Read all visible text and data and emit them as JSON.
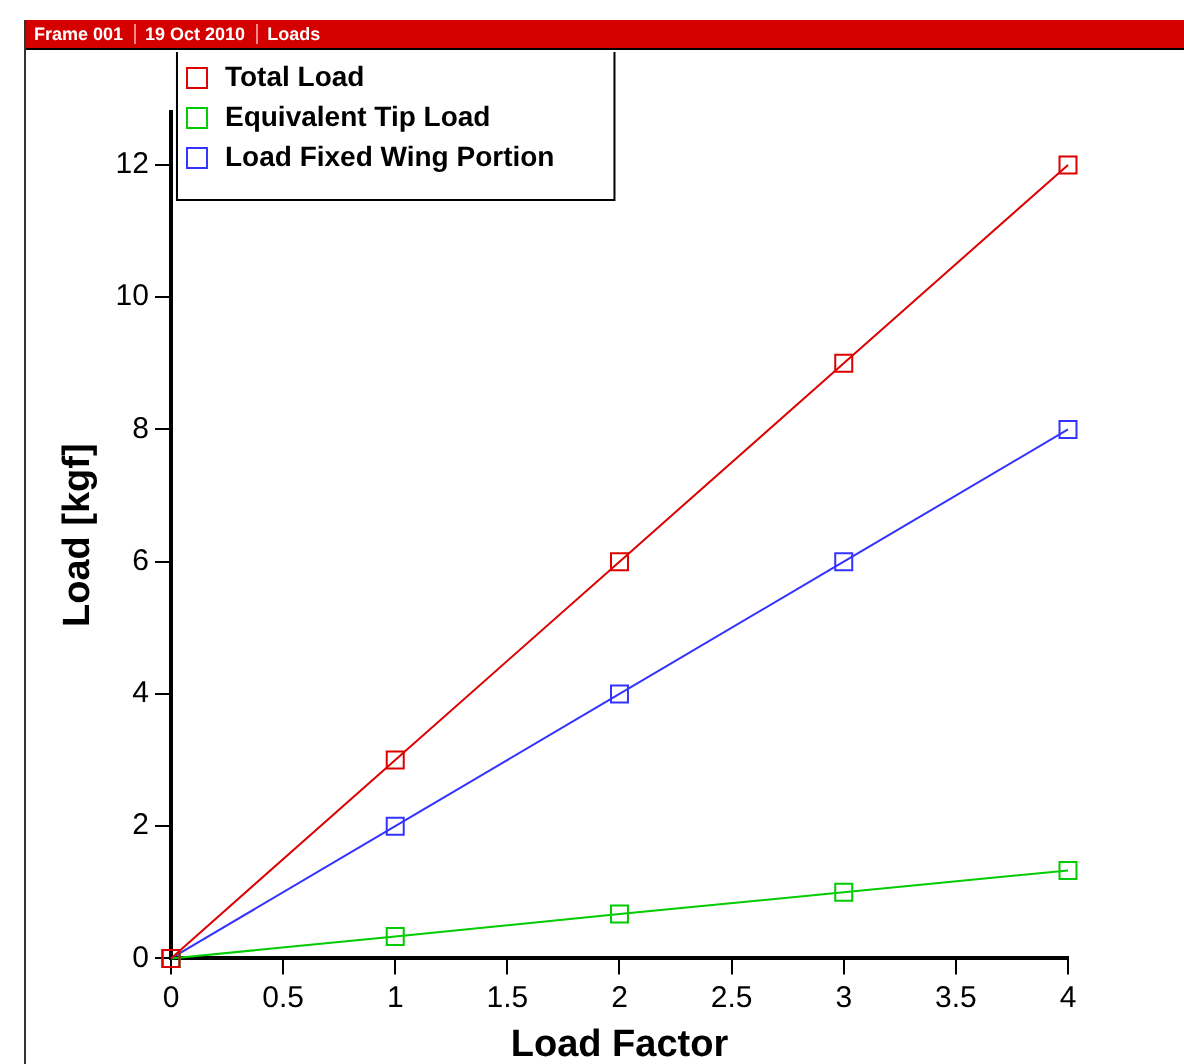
{
  "chart_data": {
    "type": "line",
    "annotations": [
      "Frame 001",
      "19 Oct 2010",
      "Loads"
    ],
    "xlabel": "Load Factor",
    "ylabel": "Load [kgf]",
    "x": [
      0,
      1,
      2,
      3,
      4
    ],
    "series": [
      {
        "name": "Total Load",
        "color": "#dd0000",
        "values": [
          0,
          3,
          6,
          9,
          12
        ]
      },
      {
        "name": "Equivalent Tip Load",
        "color": "#00cc00",
        "values": [
          0,
          0.33,
          0.67,
          1,
          1.33
        ]
      },
      {
        "name": "Load Fixed Wing Portion",
        "color": "#3333ff",
        "values": [
          0,
          2,
          4,
          6,
          8
        ]
      }
    ],
    "xlim": [
      0,
      4
    ],
    "xticks": [
      0,
      0.5,
      1,
      1.5,
      2,
      2.5,
      3,
      3.5,
      4
    ],
    "ylim": [
      0,
      12.8
    ],
    "yticks": [
      0,
      2,
      4,
      6,
      8,
      10,
      12
    ],
    "grid": false,
    "legend": "top left",
    "marker": "square",
    "line_style": "solid"
  }
}
